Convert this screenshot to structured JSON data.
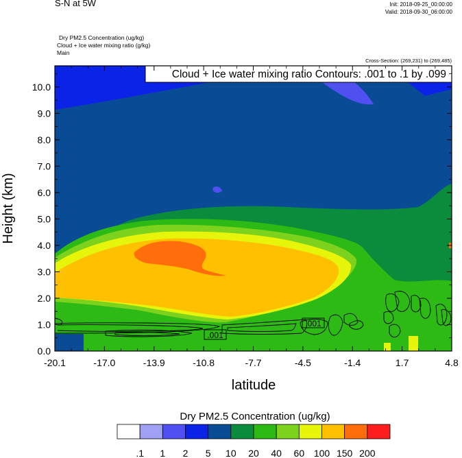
{
  "header": {
    "title": "S-N at 5W",
    "init": "Init: 2018-09-25_00:00:00",
    "valid": "Valid: 2018-09-30_06:00:00",
    "field_line1": "Dry PM2.5 Concentration   (ug/kg)",
    "field_line2": "Cloud + Ice water mixing ratio   (g/kg)",
    "field_line3": "Main",
    "cross_section": "Cross-Section: (269,231) to (269,485)",
    "contour_info": "Cloud + Ice water mixing ratio Contours: .001 to .1 by .099"
  },
  "chart_data": {
    "type": "heatmap",
    "title": "S-N at 5W",
    "xlabel": "latitude",
    "ylabel": "Height (km)",
    "xlim": [
      -20.1,
      4.8
    ],
    "ylim": [
      0.0,
      10.8
    ],
    "x_ticks": [
      "-20.1",
      "-17.0",
      "-13.9",
      "-10.8",
      "-7.7",
      "-4.5",
      "-1.4",
      "1.7",
      "4.8"
    ],
    "y_ticks": [
      "0.0",
      "1.0",
      "2.0",
      "3.0",
      "4.0",
      "5.0",
      "6.0",
      "7.0",
      "8.0",
      "9.0",
      "10.0"
    ],
    "colorbar": {
      "title": "Dry PM2.5 Concentration  (ug/kg)",
      "levels": [
        ".1",
        "1",
        "2",
        "5",
        "10",
        "20",
        "40",
        "60",
        "100",
        "150",
        "200"
      ],
      "colors": [
        "#ffffff",
        "#a0a0f5",
        "#5050f0",
        "#0a23e6",
        "#0a4b96",
        "#0a8c3c",
        "#2dba14",
        "#7dd21e",
        "#e6f50a",
        "#ffc000",
        "#ff6e0a",
        "#ff1e1e"
      ]
    },
    "contour_labels": [
      ".001",
      ".001"
    ],
    "grid": false
  }
}
